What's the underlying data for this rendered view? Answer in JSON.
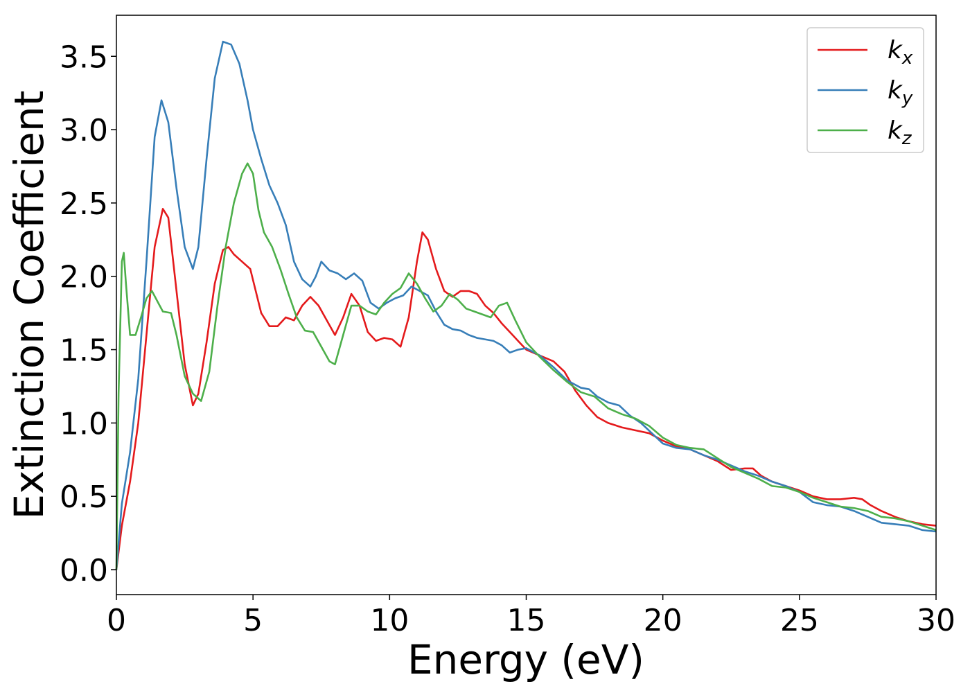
{
  "chart_data": {
    "type": "line",
    "xlabel": "Energy (eV)",
    "ylabel": "Extinction Coefficient",
    "xlim": [
      0,
      30
    ],
    "ylim": [
      -0.17,
      3.78
    ],
    "xticks": [
      0,
      5,
      10,
      15,
      20,
      25,
      30
    ],
    "yticks": [
      0.0,
      0.5,
      1.0,
      1.5,
      2.0,
      2.5,
      3.0,
      3.5
    ],
    "xtick_labels": [
      "0",
      "5",
      "10",
      "15",
      "20",
      "25",
      "30"
    ],
    "ytick_labels": [
      "0.0",
      "0.5",
      "1.0",
      "1.5",
      "2.0",
      "2.5",
      "3.0",
      "3.5"
    ],
    "grid": false,
    "legend_position": "top-right",
    "series": [
      {
        "name": "k_x",
        "label_base": "k",
        "label_sub": "x",
        "color": "#e41a1c",
        "points": [
          [
            0,
            0
          ],
          [
            0.2,
            0.3
          ],
          [
            0.5,
            0.6
          ],
          [
            0.8,
            1.0
          ],
          [
            1.1,
            1.6
          ],
          [
            1.4,
            2.2
          ],
          [
            1.7,
            2.46
          ],
          [
            1.9,
            2.4
          ],
          [
            2.2,
            1.9
          ],
          [
            2.5,
            1.4
          ],
          [
            2.8,
            1.12
          ],
          [
            3.0,
            1.2
          ],
          [
            3.3,
            1.55
          ],
          [
            3.6,
            1.95
          ],
          [
            3.9,
            2.18
          ],
          [
            4.1,
            2.2
          ],
          [
            4.3,
            2.15
          ],
          [
            4.6,
            2.1
          ],
          [
            4.9,
            2.05
          ],
          [
            5.1,
            1.9
          ],
          [
            5.3,
            1.75
          ],
          [
            5.6,
            1.66
          ],
          [
            5.9,
            1.66
          ],
          [
            6.2,
            1.72
          ],
          [
            6.5,
            1.7
          ],
          [
            6.8,
            1.8
          ],
          [
            7.1,
            1.86
          ],
          [
            7.4,
            1.8
          ],
          [
            7.7,
            1.7
          ],
          [
            8.0,
            1.6
          ],
          [
            8.3,
            1.72
          ],
          [
            8.6,
            1.88
          ],
          [
            8.9,
            1.8
          ],
          [
            9.2,
            1.62
          ],
          [
            9.5,
            1.56
          ],
          [
            9.8,
            1.58
          ],
          [
            10.1,
            1.57
          ],
          [
            10.4,
            1.52
          ],
          [
            10.7,
            1.72
          ],
          [
            11.0,
            2.1
          ],
          [
            11.2,
            2.3
          ],
          [
            11.4,
            2.25
          ],
          [
            11.7,
            2.05
          ],
          [
            12.0,
            1.9
          ],
          [
            12.3,
            1.86
          ],
          [
            12.6,
            1.9
          ],
          [
            12.9,
            1.9
          ],
          [
            13.2,
            1.88
          ],
          [
            13.5,
            1.8
          ],
          [
            13.8,
            1.75
          ],
          [
            14.1,
            1.68
          ],
          [
            14.4,
            1.62
          ],
          [
            14.7,
            1.56
          ],
          [
            15.0,
            1.5
          ],
          [
            15.5,
            1.46
          ],
          [
            16.0,
            1.42
          ],
          [
            16.4,
            1.35
          ],
          [
            16.8,
            1.22
          ],
          [
            17.2,
            1.12
          ],
          [
            17.6,
            1.04
          ],
          [
            18.0,
            1.0
          ],
          [
            18.5,
            0.97
          ],
          [
            19.0,
            0.95
          ],
          [
            19.5,
            0.93
          ],
          [
            20.0,
            0.88
          ],
          [
            20.5,
            0.84
          ],
          [
            21.0,
            0.82
          ],
          [
            21.5,
            0.78
          ],
          [
            22.0,
            0.74
          ],
          [
            22.5,
            0.68
          ],
          [
            23.0,
            0.69
          ],
          [
            23.3,
            0.69
          ],
          [
            23.6,
            0.64
          ],
          [
            24.0,
            0.6
          ],
          [
            24.5,
            0.57
          ],
          [
            25.0,
            0.54
          ],
          [
            25.5,
            0.5
          ],
          [
            26.0,
            0.48
          ],
          [
            26.5,
            0.48
          ],
          [
            27.0,
            0.49
          ],
          [
            27.3,
            0.48
          ],
          [
            27.6,
            0.44
          ],
          [
            28.0,
            0.4
          ],
          [
            28.5,
            0.36
          ],
          [
            29.0,
            0.33
          ],
          [
            29.5,
            0.31
          ],
          [
            30.0,
            0.3
          ]
        ]
      },
      {
        "name": "k_y",
        "label_base": "k",
        "label_sub": "y",
        "color": "#377eb8",
        "points": [
          [
            0,
            0
          ],
          [
            0.2,
            0.45
          ],
          [
            0.5,
            0.8
          ],
          [
            0.8,
            1.3
          ],
          [
            1.1,
            2.1
          ],
          [
            1.4,
            2.95
          ],
          [
            1.65,
            3.2
          ],
          [
            1.9,
            3.05
          ],
          [
            2.2,
            2.6
          ],
          [
            2.5,
            2.2
          ],
          [
            2.8,
            2.05
          ],
          [
            3.0,
            2.2
          ],
          [
            3.3,
            2.8
          ],
          [
            3.6,
            3.35
          ],
          [
            3.9,
            3.6
          ],
          [
            4.2,
            3.58
          ],
          [
            4.5,
            3.45
          ],
          [
            4.8,
            3.2
          ],
          [
            5.0,
            3.0
          ],
          [
            5.3,
            2.8
          ],
          [
            5.6,
            2.62
          ],
          [
            5.9,
            2.5
          ],
          [
            6.2,
            2.35
          ],
          [
            6.5,
            2.1
          ],
          [
            6.8,
            1.98
          ],
          [
            7.1,
            1.93
          ],
          [
            7.3,
            2.0
          ],
          [
            7.5,
            2.1
          ],
          [
            7.8,
            2.04
          ],
          [
            8.1,
            2.02
          ],
          [
            8.4,
            1.98
          ],
          [
            8.7,
            2.02
          ],
          [
            9.0,
            1.97
          ],
          [
            9.3,
            1.82
          ],
          [
            9.6,
            1.78
          ],
          [
            9.9,
            1.82
          ],
          [
            10.2,
            1.85
          ],
          [
            10.5,
            1.87
          ],
          [
            10.8,
            1.93
          ],
          [
            11.1,
            1.9
          ],
          [
            11.4,
            1.87
          ],
          [
            11.7,
            1.76
          ],
          [
            12.0,
            1.67
          ],
          [
            12.3,
            1.64
          ],
          [
            12.6,
            1.63
          ],
          [
            12.9,
            1.6
          ],
          [
            13.2,
            1.58
          ],
          [
            13.5,
            1.57
          ],
          [
            13.8,
            1.56
          ],
          [
            14.1,
            1.53
          ],
          [
            14.4,
            1.48
          ],
          [
            14.7,
            1.5
          ],
          [
            15.0,
            1.51
          ],
          [
            15.5,
            1.46
          ],
          [
            16.0,
            1.38
          ],
          [
            16.5,
            1.29
          ],
          [
            17.0,
            1.24
          ],
          [
            17.3,
            1.23
          ],
          [
            17.6,
            1.18
          ],
          [
            18.0,
            1.14
          ],
          [
            18.4,
            1.12
          ],
          [
            18.8,
            1.05
          ],
          [
            19.2,
            1.0
          ],
          [
            19.6,
            0.93
          ],
          [
            20.0,
            0.86
          ],
          [
            20.5,
            0.83
          ],
          [
            21.0,
            0.82
          ],
          [
            21.5,
            0.78
          ],
          [
            22.0,
            0.75
          ],
          [
            22.5,
            0.71
          ],
          [
            23.0,
            0.67
          ],
          [
            23.5,
            0.64
          ],
          [
            24.0,
            0.6
          ],
          [
            24.5,
            0.57
          ],
          [
            25.0,
            0.53
          ],
          [
            25.5,
            0.46
          ],
          [
            26.0,
            0.44
          ],
          [
            26.5,
            0.43
          ],
          [
            27.0,
            0.4
          ],
          [
            27.5,
            0.36
          ],
          [
            28.0,
            0.32
          ],
          [
            28.5,
            0.31
          ],
          [
            29.0,
            0.3
          ],
          [
            29.5,
            0.27
          ],
          [
            30.0,
            0.26
          ]
        ]
      },
      {
        "name": "k_z",
        "label_base": "k",
        "label_sub": "z",
        "color": "#4daf4a",
        "points": [
          [
            0,
            0
          ],
          [
            0.08,
            1.2
          ],
          [
            0.2,
            2.1
          ],
          [
            0.27,
            2.16
          ],
          [
            0.35,
            1.95
          ],
          [
            0.5,
            1.6
          ],
          [
            0.7,
            1.6
          ],
          [
            0.9,
            1.72
          ],
          [
            1.1,
            1.85
          ],
          [
            1.3,
            1.9
          ],
          [
            1.5,
            1.83
          ],
          [
            1.7,
            1.76
          ],
          [
            2.0,
            1.75
          ],
          [
            2.2,
            1.6
          ],
          [
            2.5,
            1.32
          ],
          [
            2.8,
            1.2
          ],
          [
            3.1,
            1.15
          ],
          [
            3.4,
            1.35
          ],
          [
            3.7,
            1.8
          ],
          [
            4.0,
            2.2
          ],
          [
            4.3,
            2.5
          ],
          [
            4.6,
            2.7
          ],
          [
            4.8,
            2.77
          ],
          [
            5.0,
            2.7
          ],
          [
            5.2,
            2.45
          ],
          [
            5.4,
            2.3
          ],
          [
            5.7,
            2.2
          ],
          [
            6.0,
            2.05
          ],
          [
            6.3,
            1.88
          ],
          [
            6.6,
            1.72
          ],
          [
            6.9,
            1.63
          ],
          [
            7.2,
            1.62
          ],
          [
            7.5,
            1.52
          ],
          [
            7.8,
            1.42
          ],
          [
            8.0,
            1.4
          ],
          [
            8.3,
            1.6
          ],
          [
            8.6,
            1.8
          ],
          [
            8.9,
            1.8
          ],
          [
            9.2,
            1.76
          ],
          [
            9.5,
            1.74
          ],
          [
            9.8,
            1.82
          ],
          [
            10.1,
            1.88
          ],
          [
            10.4,
            1.92
          ],
          [
            10.7,
            2.02
          ],
          [
            11.0,
            1.95
          ],
          [
            11.3,
            1.85
          ],
          [
            11.6,
            1.76
          ],
          [
            11.9,
            1.8
          ],
          [
            12.2,
            1.88
          ],
          [
            12.5,
            1.84
          ],
          [
            12.8,
            1.78
          ],
          [
            13.1,
            1.76
          ],
          [
            13.4,
            1.74
          ],
          [
            13.7,
            1.72
          ],
          [
            14.0,
            1.8
          ],
          [
            14.3,
            1.82
          ],
          [
            14.6,
            1.7
          ],
          [
            15.0,
            1.55
          ],
          [
            15.5,
            1.45
          ],
          [
            16.0,
            1.36
          ],
          [
            16.5,
            1.28
          ],
          [
            17.0,
            1.21
          ],
          [
            17.5,
            1.18
          ],
          [
            18.0,
            1.1
          ],
          [
            18.5,
            1.06
          ],
          [
            19.0,
            1.03
          ],
          [
            19.5,
            0.98
          ],
          [
            20.0,
            0.9
          ],
          [
            20.5,
            0.85
          ],
          [
            21.0,
            0.83
          ],
          [
            21.5,
            0.82
          ],
          [
            22.0,
            0.76
          ],
          [
            22.5,
            0.7
          ],
          [
            23.0,
            0.66
          ],
          [
            23.5,
            0.62
          ],
          [
            24.0,
            0.57
          ],
          [
            24.5,
            0.56
          ],
          [
            25.0,
            0.53
          ],
          [
            25.5,
            0.49
          ],
          [
            26.0,
            0.46
          ],
          [
            26.5,
            0.43
          ],
          [
            27.0,
            0.42
          ],
          [
            27.5,
            0.4
          ],
          [
            28.0,
            0.36
          ],
          [
            28.5,
            0.35
          ],
          [
            29.0,
            0.33
          ],
          [
            29.5,
            0.3
          ],
          [
            30.0,
            0.27
          ]
        ]
      }
    ]
  }
}
